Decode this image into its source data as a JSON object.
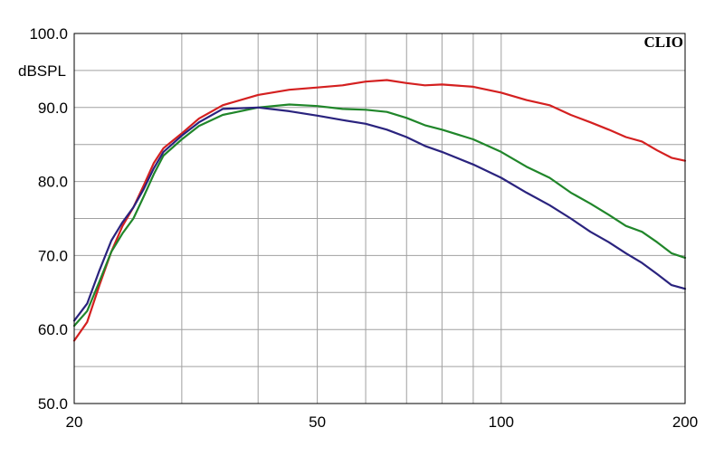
{
  "chart_data": {
    "type": "line",
    "brand": "CLIO",
    "ylabel": "dBSPL",
    "xscale": "log",
    "xlim": [
      20,
      200
    ],
    "ylim": [
      50,
      100
    ],
    "grid": true,
    "x_tick_labels": [
      {
        "value": 20,
        "label": "20"
      },
      {
        "value": 50,
        "label": "50"
      },
      {
        "value": 100,
        "label": "100"
      },
      {
        "value": 200,
        "label": "200"
      }
    ],
    "y_tick_labels": [
      {
        "value": 100,
        "label": "100.0"
      },
      {
        "value": 90,
        "label": "90.0"
      },
      {
        "value": 80,
        "label": "80.0"
      },
      {
        "value": 70,
        "label": "70.0"
      },
      {
        "value": 60,
        "label": "60.0"
      },
      {
        "value": 50,
        "label": "50.0"
      }
    ],
    "x_grid": [
      20,
      30,
      40,
      50,
      60,
      70,
      80,
      90,
      100,
      200
    ],
    "y_grid": [
      50,
      55,
      60,
      65,
      70,
      75,
      80,
      85,
      90,
      95,
      100
    ],
    "series": [
      {
        "color": "#d42020",
        "points": [
          [
            20,
            58.5
          ],
          [
            21,
            61
          ],
          [
            22,
            66
          ],
          [
            23,
            70.5
          ],
          [
            24,
            74
          ],
          [
            25,
            76.5
          ],
          [
            26,
            79.5
          ],
          [
            27,
            82.5
          ],
          [
            28,
            84.5
          ],
          [
            30,
            86.5
          ],
          [
            32,
            88.5
          ],
          [
            35,
            90.3
          ],
          [
            40,
            91.7
          ],
          [
            45,
            92.4
          ],
          [
            50,
            92.7
          ],
          [
            55,
            93.0
          ],
          [
            60,
            93.5
          ],
          [
            65,
            93.7
          ],
          [
            70,
            93.3
          ],
          [
            75,
            93.0
          ],
          [
            80,
            93.1
          ],
          [
            90,
            92.8
          ],
          [
            100,
            92.0
          ],
          [
            110,
            91.0
          ],
          [
            120,
            90.3
          ],
          [
            130,
            89.0
          ],
          [
            140,
            88.0
          ],
          [
            150,
            87.0
          ],
          [
            160,
            86.0
          ],
          [
            170,
            85.4
          ],
          [
            180,
            84.2
          ],
          [
            190,
            83.2
          ],
          [
            200,
            82.8
          ]
        ]
      },
      {
        "color": "#20862a",
        "points": [
          [
            20,
            60.5
          ],
          [
            21,
            62.5
          ],
          [
            22,
            66.5
          ],
          [
            23,
            70.5
          ],
          [
            24,
            73
          ],
          [
            25,
            75
          ],
          [
            26,
            78
          ],
          [
            27,
            81
          ],
          [
            28,
            83.5
          ],
          [
            30,
            85.7
          ],
          [
            32,
            87.5
          ],
          [
            35,
            89.0
          ],
          [
            40,
            90.0
          ],
          [
            45,
            90.4
          ],
          [
            50,
            90.2
          ],
          [
            55,
            89.8
          ],
          [
            60,
            89.7
          ],
          [
            65,
            89.4
          ],
          [
            70,
            88.6
          ],
          [
            75,
            87.6
          ],
          [
            80,
            87.0
          ],
          [
            90,
            85.7
          ],
          [
            100,
            84.0
          ],
          [
            110,
            82.0
          ],
          [
            120,
            80.5
          ],
          [
            130,
            78.5
          ],
          [
            140,
            77.0
          ],
          [
            150,
            75.5
          ],
          [
            160,
            74.0
          ],
          [
            170,
            73.2
          ],
          [
            180,
            71.8
          ],
          [
            190,
            70.3
          ],
          [
            200,
            69.7
          ]
        ]
      },
      {
        "color": "#2a237e",
        "points": [
          [
            20,
            61.2
          ],
          [
            21,
            63.5
          ],
          [
            22,
            68
          ],
          [
            23,
            72
          ],
          [
            24,
            74.5
          ],
          [
            25,
            76.5
          ],
          [
            26,
            79
          ],
          [
            27,
            81.8
          ],
          [
            28,
            84
          ],
          [
            30,
            86.2
          ],
          [
            32,
            88
          ],
          [
            35,
            89.8
          ],
          [
            40,
            90.0
          ],
          [
            45,
            89.5
          ],
          [
            50,
            88.9
          ],
          [
            55,
            88.3
          ],
          [
            60,
            87.8
          ],
          [
            65,
            87.0
          ],
          [
            70,
            86.0
          ],
          [
            75,
            84.8
          ],
          [
            80,
            84.0
          ],
          [
            90,
            82.3
          ],
          [
            100,
            80.5
          ],
          [
            110,
            78.5
          ],
          [
            120,
            76.8
          ],
          [
            130,
            75.0
          ],
          [
            140,
            73.2
          ],
          [
            150,
            71.8
          ],
          [
            160,
            70.3
          ],
          [
            170,
            69.0
          ],
          [
            180,
            67.5
          ],
          [
            190,
            66.0
          ],
          [
            200,
            65.5
          ]
        ]
      }
    ]
  }
}
